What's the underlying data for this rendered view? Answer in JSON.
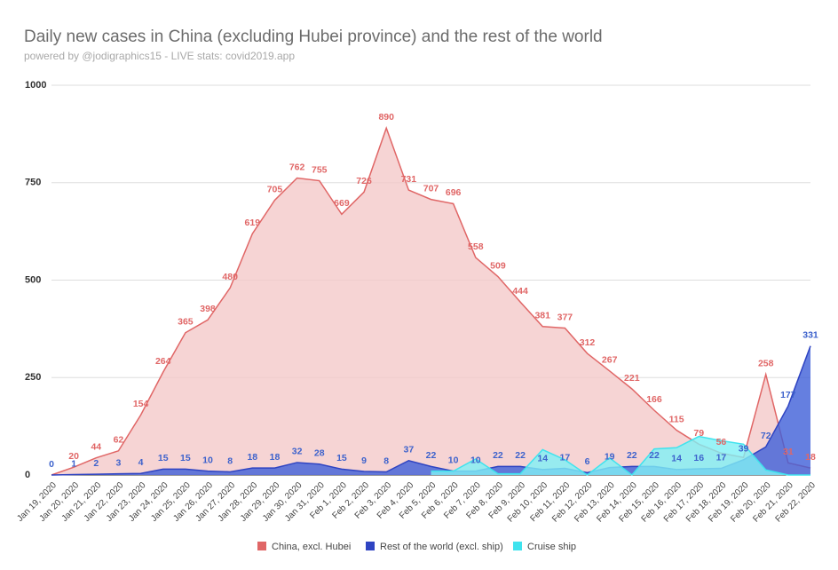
{
  "chart_data": {
    "type": "area",
    "title": "Daily new cases in China (excluding Hubei province) and the rest of the world",
    "subtitle": "powered by @jodigraphics15 - LIVE stats: covid2019.app",
    "categories": [
      "Jan 19, 2020",
      "Jan 20, 2020",
      "Jan 21, 2020",
      "Jan 22, 2020",
      "Jan 23, 2020",
      "Jan 24, 2020",
      "Jan 25, 2020",
      "Jan 26, 2020",
      "Jan 27, 2020",
      "Jan 28, 2020",
      "Jan 29, 2020",
      "Jan 30, 2020",
      "Jan 31, 2020",
      "Feb 1, 2020",
      "Feb 2, 2020",
      "Feb 3, 2020",
      "Feb 4, 2020",
      "Feb 5, 2020",
      "Feb 6, 2020",
      "Feb 7, 2020",
      "Feb 8, 2020",
      "Feb 9, 2020",
      "Feb 10, 2020",
      "Feb 11, 2020",
      "Feb 12, 2020",
      "Feb 13, 2020",
      "Feb 14, 2020",
      "Feb 15, 2020",
      "Feb 16, 2020",
      "Feb 17, 2020",
      "Feb 18, 2020",
      "Feb 19, 2020",
      "Feb 20, 2020",
      "Feb 21, 2020",
      "Feb 22, 2020"
    ],
    "series": [
      {
        "name": "China, excl. Hubei",
        "color": "#e06666",
        "fill": "#f4c9c9",
        "label_color": "#e06666",
        "values": [
          0,
          20,
          44,
          62,
          154,
          264,
          365,
          398,
          480,
          619,
          705,
          762,
          755,
          669,
          726,
          890,
          731,
          707,
          696,
          558,
          509,
          444,
          381,
          377,
          312,
          267,
          221,
          166,
          115,
          79,
          56,
          45,
          258,
          31,
          18
        ],
        "value_labels": [
          null,
          "20",
          "44",
          "62",
          "154",
          "264",
          "365",
          "398",
          "480",
          "619",
          "705",
          "762",
          "755",
          "669",
          "726",
          "890",
          "731",
          "707",
          "696",
          "558",
          "509",
          "444",
          "381",
          "377",
          "312",
          "267",
          "221",
          "166",
          "115",
          "79",
          "56",
          null,
          "258",
          "31",
          "18"
        ]
      },
      {
        "name": "Rest of the world (excl. ship)",
        "color": "#2f44c2",
        "fill": "#3f5fd8",
        "label_color": "#3d62cc",
        "values": [
          0,
          1,
          2,
          3,
          4,
          15,
          15,
          10,
          8,
          18,
          18,
          32,
          28,
          15,
          9,
          8,
          37,
          22,
          10,
          10,
          22,
          22,
          14,
          17,
          6,
          19,
          22,
          22,
          14,
          16,
          17,
          39,
          72,
          177,
          331
        ]
      },
      {
        "name": "Cruise ship",
        "color": "#3fe3ee",
        "fill": "#7ff0f5",
        "values": [
          null,
          null,
          null,
          null,
          null,
          null,
          null,
          null,
          null,
          null,
          null,
          null,
          null,
          null,
          null,
          null,
          null,
          10,
          10,
          41,
          3,
          3,
          65,
          39,
          0,
          44,
          0,
          67,
          70,
          99,
          88,
          79,
          13,
          0,
          0
        ]
      }
    ],
    "ylim": [
      0,
      1000
    ],
    "yticks": [
      0,
      250,
      500,
      750,
      1000
    ],
    "grid": true
  }
}
